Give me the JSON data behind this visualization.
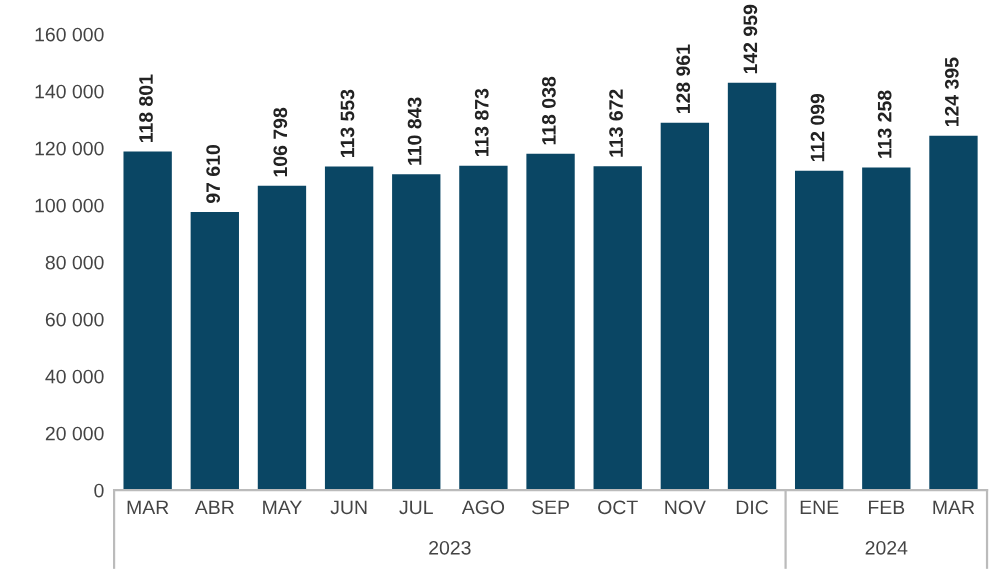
{
  "chart_data": {
    "type": "bar",
    "categories": [
      "MAR",
      "ABR",
      "MAY",
      "JUN",
      "JUL",
      "AGO",
      "SEP",
      "OCT",
      "NOV",
      "DIC",
      "ENE",
      "FEB",
      "MAR"
    ],
    "values": [
      118801,
      97610,
      106798,
      113553,
      110843,
      113873,
      118038,
      113672,
      128961,
      142959,
      112099,
      113258,
      124395
    ],
    "value_labels": [
      "118 801",
      "97 610",
      "106 798",
      "113 553",
      "110 843",
      "113 873",
      "118 038",
      "113 672",
      "128 961",
      "142 959",
      "112 099",
      "113 258",
      "124 395"
    ],
    "color": "#0a4664",
    "ylim": [
      0,
      160000
    ],
    "yticks": [
      {
        "value": 0,
        "label": "0"
      },
      {
        "value": 20000,
        "label": "20 000"
      },
      {
        "value": 40000,
        "label": "40 000"
      },
      {
        "value": 60000,
        "label": "60 000"
      },
      {
        "value": 80000,
        "label": "80 000"
      },
      {
        "value": 100000,
        "label": "100 000"
      },
      {
        "value": 120000,
        "label": "120 000"
      },
      {
        "value": 140000,
        "label": "140 000"
      },
      {
        "value": 160000,
        "label": "160 000"
      }
    ],
    "annotations": [
      "2023",
      "2024"
    ],
    "grid": false,
    "legend": false
  }
}
